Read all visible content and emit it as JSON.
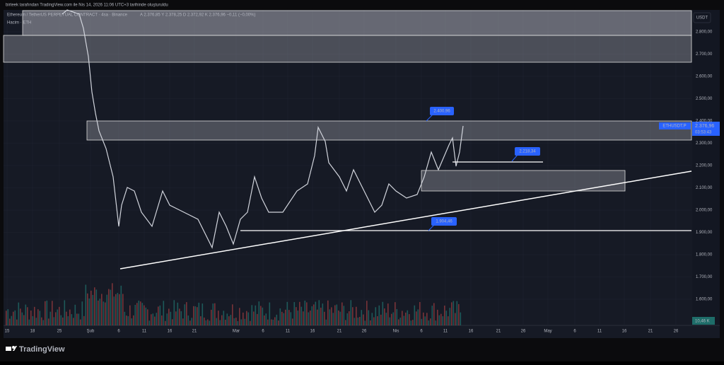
{
  "header": {
    "attribution": "birteek tarafından TradingView.com ile Nis 14, 2026 11:06 UTC+3 tarihinde oluşturuldu"
  },
  "legend": {
    "symbol": "Ethereum / TetherUS PERPETUAL CONTRACT · 4sa · Binance",
    "ohlc": "A 2.376,85  Y 2.378,25  D 2.372,92  K 2.376,96  −0,11 (−0,00%)",
    "volume": "Hacim · ETH"
  },
  "currency": "USDT",
  "price_axis": [
    "2.800,00",
    "2.700,00",
    "2.600,00",
    "2.500,00",
    "2.400,00",
    "2.300,00",
    "2.200,00",
    "2.100,00",
    "2.000,00",
    "1.900,00",
    "1.800,00",
    "1.700,00",
    "1.600,00"
  ],
  "time_axis": [
    "15",
    "18",
    "25",
    "Şub",
    "6",
    "11",
    "16",
    "21",
    "Mar",
    "6",
    "11",
    "16",
    "21",
    "26",
    "Nis",
    "6",
    "11",
    "16",
    "21",
    "26",
    "May",
    "6",
    "11",
    "16",
    "21",
    "26"
  ],
  "price_tag": {
    "symbol": "ETHUSDT.P",
    "price": "2.376,96",
    "countdown": "03:53:43"
  },
  "volume_tag": "10,46 K",
  "annotations": [
    "2.400,96",
    "2.218,34",
    "1.904,46"
  ],
  "footer": {
    "brand": "TradingView"
  }
}
